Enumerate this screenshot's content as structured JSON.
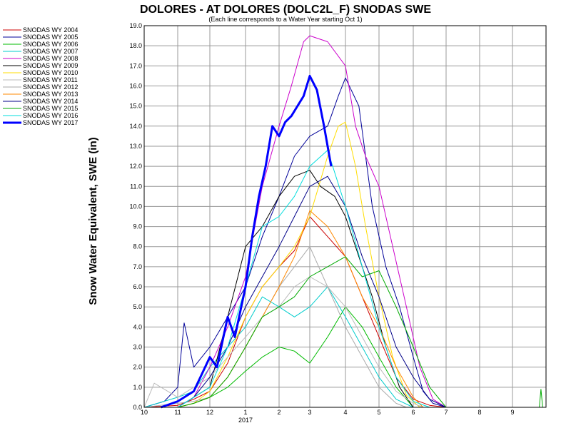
{
  "chart_data": {
    "type": "line",
    "title": "DOLORES - AT DOLORES (DOLC2L_F) SNODAS SWE",
    "subtitle": "(Each line corresponds to a Water Year starting Oct 1)",
    "ylabel": "Snow Water Equivalent, SWE (in)",
    "xlabel": "",
    "year_label": "2017",
    "ylim": [
      0,
      19
    ],
    "xlim": [
      10,
      10.95
    ],
    "x_ticks": [
      10,
      11,
      12,
      1,
      2,
      3,
      4,
      5,
      6,
      7,
      8,
      9
    ],
    "y_ticks": [
      "0.0",
      "1.0",
      "2.0",
      "3.0",
      "4.0",
      "5.0",
      "6.0",
      "7.0",
      "8.0",
      "9.0",
      "10.0",
      "11.0",
      "12.0",
      "13.0",
      "14.0",
      "15.0",
      "16.0",
      "17.0",
      "18.0",
      "19.0"
    ],
    "grid": true,
    "legend_position": "left",
    "series": [
      {
        "name": "SNODAS WY 2004",
        "color": "#cc0000",
        "width": 1,
        "x": [
          10.0,
          11.0,
          11.5,
          12.0,
          12.5,
          1.0,
          1.5,
          2.0,
          2.5,
          3.0,
          3.5,
          4.0,
          4.5,
          5.0,
          5.5,
          6.0,
          6.5,
          7.0
        ],
        "values": [
          0,
          0.1,
          0.4,
          0.8,
          2.2,
          4.5,
          6.0,
          7.0,
          7.8,
          9.5,
          8.5,
          7.5,
          5.5,
          3.5,
          1.5,
          0.4,
          0.1,
          0
        ]
      },
      {
        "name": "SNODAS WY 2005",
        "color": "#000099",
        "width": 1,
        "x": [
          10.0,
          10.6,
          11.0,
          11.2,
          11.5,
          12.0,
          12.5,
          1.0,
          1.5,
          2.0,
          2.5,
          3.0,
          3.5,
          3.8,
          4.0,
          4.4,
          4.8,
          5.2,
          5.6,
          6.0,
          6.3,
          6.6,
          7.0
        ],
        "values": [
          0,
          0.3,
          1.0,
          4.2,
          2.0,
          3.0,
          4.5,
          6.0,
          8.5,
          10.5,
          12.5,
          13.5,
          14.0,
          15.5,
          16.4,
          15.0,
          10.0,
          7.0,
          5.0,
          2.5,
          0.8,
          0.2,
          0
        ]
      },
      {
        "name": "SNODAS WY 2006",
        "color": "#00bb00",
        "width": 1,
        "x": [
          10.0,
          11.0,
          11.5,
          12.0,
          12.5,
          1.0,
          1.5,
          2.0,
          2.5,
          3.0,
          3.5,
          4.0,
          4.5,
          5.0,
          5.5,
          6.0
        ],
        "values": [
          0,
          0,
          0.2,
          0.5,
          1.0,
          1.8,
          2.5,
          3.0,
          2.8,
          2.2,
          3.5,
          5.0,
          4.0,
          2.5,
          1.0,
          0
        ]
      },
      {
        "name": "SNODAS WY 2007",
        "color": "#00cccc",
        "width": 1,
        "x": [
          10.0,
          11.0,
          11.5,
          12.0,
          12.5,
          1.0,
          1.5,
          2.0,
          2.5,
          3.0,
          3.5,
          4.0,
          4.5,
          5.0,
          5.5,
          6.0
        ],
        "values": [
          0,
          0.5,
          0.8,
          2.0,
          3.0,
          4.0,
          5.5,
          5.0,
          4.5,
          5.0,
          6.0,
          4.5,
          3.0,
          1.5,
          0.4,
          0
        ]
      },
      {
        "name": "SNODAS WY 2008",
        "color": "#cc00cc",
        "width": 1,
        "x": [
          10.0,
          11.0,
          11.5,
          12.0,
          12.5,
          1.0,
          1.5,
          2.0,
          2.4,
          2.8,
          3.0,
          3.5,
          4.0,
          4.3,
          4.6,
          5.0,
          5.4,
          5.8,
          6.2,
          6.6,
          7.0
        ],
        "values": [
          0,
          0,
          0.5,
          2.0,
          4.0,
          6.5,
          11.0,
          14.0,
          16.0,
          18.2,
          18.5,
          18.2,
          17.0,
          14.0,
          12.5,
          11.0,
          8.0,
          5.0,
          2.0,
          0.4,
          0
        ]
      },
      {
        "name": "SNODAS WY 2009",
        "color": "#000000",
        "width": 1,
        "x": [
          10.0,
          11.0,
          11.5,
          12.0,
          12.5,
          1.0,
          1.5,
          2.0,
          2.5,
          3.0,
          3.3,
          3.7,
          4.0,
          4.4,
          4.8,
          5.2,
          5.6,
          6.0
        ],
        "values": [
          0,
          0,
          0.5,
          1.0,
          4.5,
          8.0,
          9.0,
          10.5,
          11.5,
          11.8,
          11.0,
          10.5,
          9.5,
          7.5,
          5.5,
          3.0,
          1.0,
          0
        ]
      },
      {
        "name": "SNODAS WY 2010",
        "color": "#ffdd00",
        "width": 1,
        "x": [
          10.0,
          11.0,
          11.5,
          12.0,
          12.5,
          1.0,
          1.5,
          2.0,
          2.5,
          3.0,
          3.5,
          3.8,
          4.0,
          4.3,
          4.6,
          5.0,
          5.4,
          5.8,
          6.2
        ],
        "values": [
          0,
          0,
          0.2,
          0.8,
          2.5,
          4.5,
          6.0,
          7.0,
          8.0,
          9.5,
          12.5,
          14.0,
          14.2,
          12.0,
          9.0,
          5.5,
          2.5,
          0.6,
          0
        ]
      },
      {
        "name": "SNODAS WY 2011",
        "color": "#bbbbbb",
        "width": 1,
        "x": [
          10.0,
          10.3,
          11.0,
          11.5,
          12.0,
          12.5,
          1.0,
          1.5,
          2.0,
          2.5,
          3.0,
          3.5,
          4.0,
          4.5,
          5.0,
          5.5,
          6.0,
          6.3
        ],
        "values": [
          0,
          1.2,
          0.5,
          1.0,
          1.5,
          2.5,
          3.5,
          4.5,
          5.0,
          6.0,
          6.5,
          6.0,
          5.0,
          3.5,
          2.0,
          0.8,
          0.2,
          0
        ]
      },
      {
        "name": "SNODAS WY 2012",
        "color": "#aaaaaa",
        "width": 1,
        "x": [
          10.0,
          11.0,
          11.5,
          12.0,
          12.5,
          1.0,
          1.5,
          2.0,
          2.5,
          3.0,
          3.5,
          4.0,
          4.5,
          5.0,
          5.5,
          5.8
        ],
        "values": [
          0,
          0.2,
          0.3,
          0.5,
          1.5,
          3.0,
          4.5,
          6.0,
          7.0,
          8.0,
          6.0,
          4.0,
          2.5,
          1.0,
          0.2,
          0
        ]
      },
      {
        "name": "SNODAS WY 2013",
        "color": "#ff8800",
        "width": 1,
        "x": [
          10.0,
          11.0,
          11.5,
          12.0,
          12.5,
          1.0,
          1.5,
          2.0,
          2.5,
          3.0,
          3.5,
          4.0,
          4.5,
          5.0,
          5.5,
          6.0,
          6.3
        ],
        "values": [
          0,
          0,
          0.2,
          0.5,
          1.5,
          3.0,
          4.5,
          6.0,
          7.5,
          9.8,
          9.0,
          7.5,
          5.5,
          4.0,
          2.0,
          0.5,
          0
        ]
      },
      {
        "name": "SNODAS WY 2014",
        "color": "#000088",
        "width": 1,
        "x": [
          10.0,
          11.0,
          11.5,
          12.0,
          12.5,
          1.0,
          1.5,
          2.0,
          2.5,
          3.0,
          3.5,
          4.0,
          4.5,
          5.0,
          5.5,
          6.0,
          6.5,
          7.0
        ],
        "values": [
          0,
          0,
          0.5,
          1.5,
          3.0,
          5.0,
          6.5,
          8.0,
          9.5,
          11.0,
          11.5,
          10.0,
          7.5,
          5.5,
          3.0,
          1.5,
          0.4,
          0
        ]
      },
      {
        "name": "SNODAS WY 2015",
        "color": "#00aa00",
        "width": 1,
        "x": [
          10.0,
          11.0,
          11.5,
          12.0,
          12.5,
          1.0,
          1.5,
          2.0,
          2.5,
          3.0,
          3.5,
          4.0,
          4.5,
          5.0,
          5.5,
          6.0,
          6.5,
          7.0,
          9.8,
          9.85,
          9.9
        ],
        "values": [
          0,
          0,
          0.2,
          0.5,
          1.5,
          3.0,
          4.5,
          5.0,
          5.5,
          6.5,
          7.0,
          7.5,
          6.5,
          6.8,
          5.0,
          3.0,
          1.0,
          0,
          0,
          0.9,
          0
        ]
      },
      {
        "name": "SNODAS WY 2016",
        "color": "#00dddd",
        "width": 1,
        "x": [
          10.0,
          11.0,
          11.5,
          12.0,
          12.5,
          1.0,
          1.5,
          2.0,
          2.5,
          3.0,
          3.5,
          4.0,
          4.5,
          5.0,
          5.5,
          6.0,
          6.5
        ],
        "values": [
          0,
          0,
          0.5,
          1.0,
          3.0,
          6.0,
          9.0,
          9.5,
          10.5,
          12.0,
          12.8,
          10.0,
          7.0,
          4.0,
          1.5,
          0.3,
          0
        ]
      },
      {
        "name": "SNODAS WY 2017",
        "color": "#0000ff",
        "width": 3,
        "x": [
          10.5,
          11.0,
          11.5,
          12.0,
          12.2,
          12.5,
          12.7,
          1.0,
          1.2,
          1.4,
          1.6,
          1.8,
          2.0,
          2.2,
          2.4,
          2.6,
          2.8,
          3.0,
          3.2,
          3.4,
          3.6
        ],
        "values": [
          0,
          0.3,
          0.8,
          2.5,
          2.0,
          4.5,
          3.5,
          6.0,
          8.5,
          10.5,
          12.0,
          14.0,
          13.5,
          14.2,
          14.5,
          15.0,
          15.5,
          16.5,
          15.8,
          14.0,
          12.0
        ]
      }
    ]
  }
}
